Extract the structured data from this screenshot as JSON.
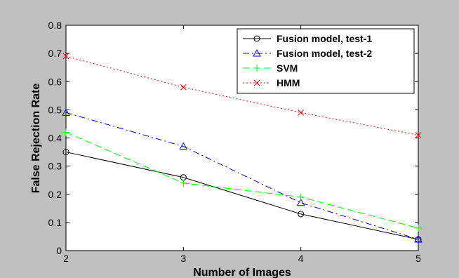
{
  "chart_data": {
    "type": "line",
    "xlabel": "Number of Images",
    "ylabel": "False  Rejection Rate",
    "xlim": [
      2,
      5
    ],
    "ylim": [
      0,
      0.8
    ],
    "xticks": [
      "2",
      "3",
      "4",
      "5"
    ],
    "yticks": [
      "0",
      "0.1",
      "0.2",
      "0.3",
      "0.4",
      "0.5",
      "0.6",
      "0.7",
      "0.8"
    ],
    "x": [
      2,
      3,
      4,
      5
    ],
    "grid": false,
    "legend_position": "top-right",
    "series": [
      {
        "name": "Fusion model, test-1",
        "values": [
          0.35,
          0.26,
          0.13,
          0.04
        ],
        "color": "#000000",
        "line_style": "solid",
        "marker": "circle"
      },
      {
        "name": "Fusion model, test-2",
        "values": [
          0.49,
          0.37,
          0.17,
          0.04
        ],
        "color": "#0000ff",
        "line_style": "dashdot",
        "marker": "triangle"
      },
      {
        "name": "SVM",
        "values": [
          0.42,
          0.24,
          0.19,
          0.08
        ],
        "color": "#00ff00",
        "line_style": "dashed",
        "marker": "plus"
      },
      {
        "name": "HMM",
        "values": [
          0.69,
          0.58,
          0.49,
          0.41
        ],
        "color": "#ff0000",
        "line_style": "dotted",
        "marker": "x"
      }
    ]
  }
}
